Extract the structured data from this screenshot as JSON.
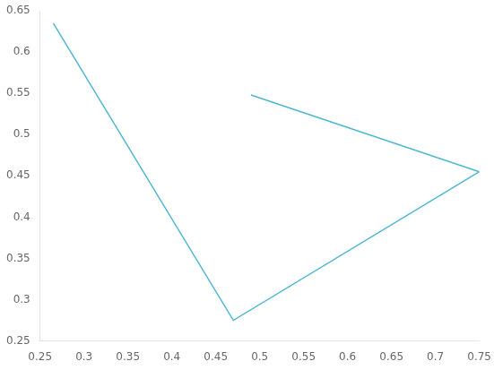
{
  "chart_data": {
    "type": "line",
    "series": [
      {
        "x": [
          0.265,
          0.47,
          0.75
        ],
        "values": [
          0.635,
          0.275,
          0.455
        ],
        "color": "#4db8d4"
      },
      {
        "x": [
          0.49,
          0.75
        ],
        "values": [
          0.548,
          0.455
        ],
        "color": "#4db8d4"
      }
    ],
    "xlim": [
      0.25,
      0.75
    ],
    "ylim": [
      0.25,
      0.65
    ],
    "xticks": [
      0.25,
      0.3,
      0.35,
      0.4,
      0.45,
      0.5,
      0.55,
      0.6,
      0.65,
      0.7,
      0.75
    ],
    "yticks": [
      0.25,
      0.3,
      0.35,
      0.4,
      0.45,
      0.5,
      0.55,
      0.6,
      0.65
    ],
    "grid": false
  }
}
